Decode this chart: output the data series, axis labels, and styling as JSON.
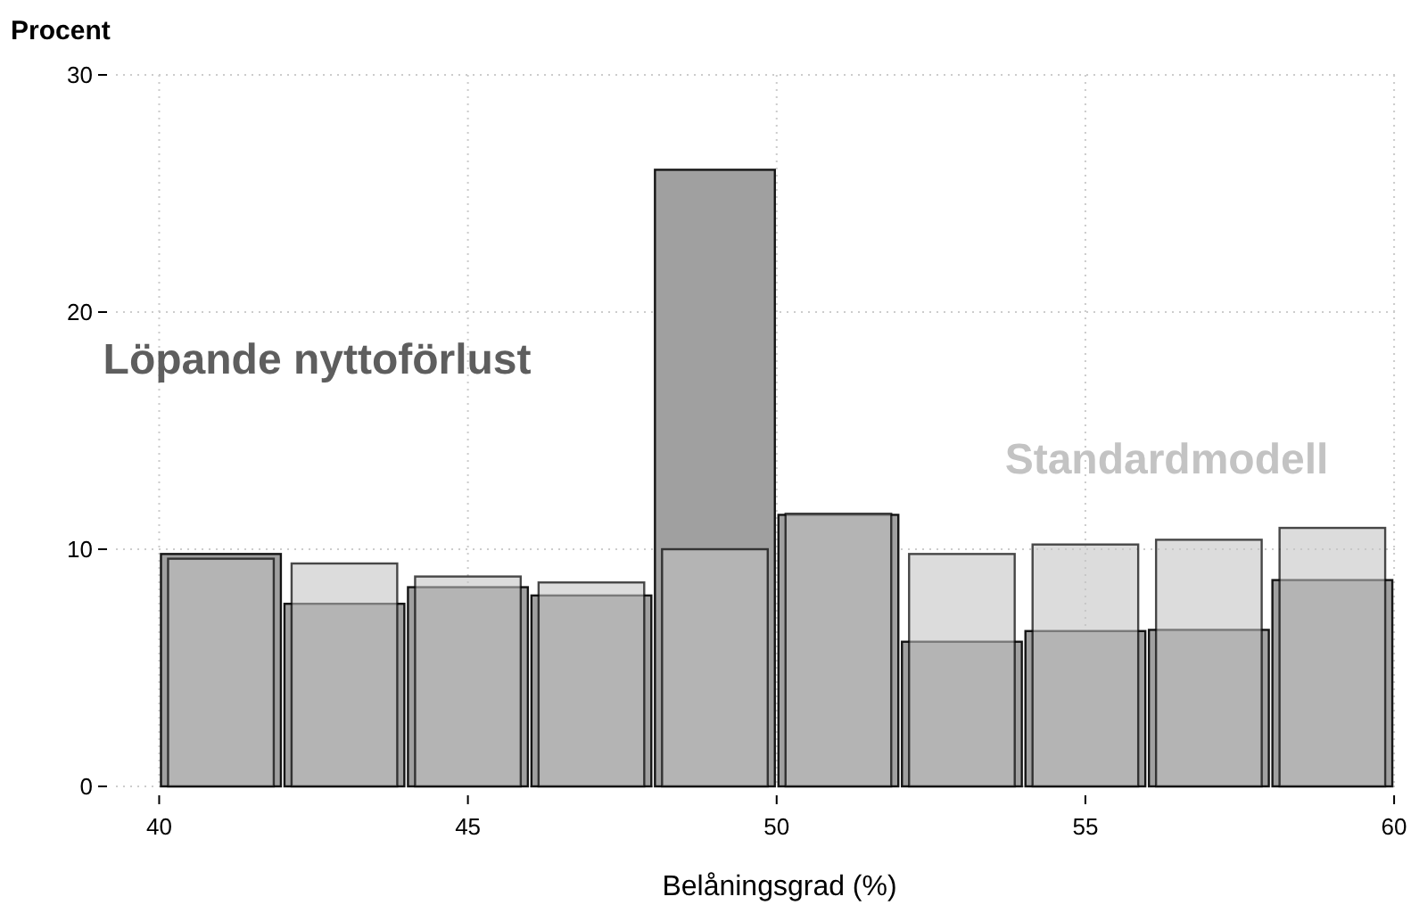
{
  "chart_data": {
    "type": "histogram",
    "ylabel": "Procent",
    "xlabel": "Belåningsgrad (%)",
    "bins": [
      40,
      42,
      44,
      46,
      48,
      50,
      52,
      54,
      56,
      58,
      60
    ],
    "series": [
      {
        "name": "Löpande nyttoförlust",
        "color": "#a0a0a0",
        "values": [
          9.8,
          7.7,
          8.4,
          8.05,
          26.0,
          11.45,
          6.1,
          6.55,
          6.6,
          8.7
        ]
      },
      {
        "name": "Standardmodell",
        "color": "#c3c3c3",
        "values": [
          9.6,
          9.4,
          8.85,
          8.6,
          10.0,
          11.5,
          9.8,
          10.2,
          10.4,
          10.9
        ]
      }
    ],
    "xlim": [
      39.3,
      60.1
    ],
    "ylim": [
      0,
      30
    ],
    "xticks": [
      40,
      45,
      50,
      55,
      60
    ],
    "yticks": [
      0,
      10,
      20,
      30
    ],
    "grid": true
  }
}
